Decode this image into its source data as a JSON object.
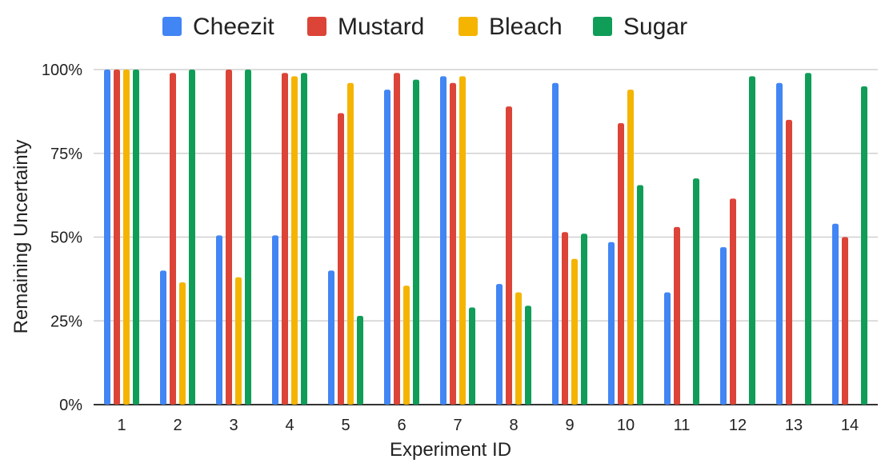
{
  "chart_data": {
    "type": "bar",
    "title": "",
    "xlabel": "Experiment ID",
    "ylabel": "Remaining Uncertainty",
    "ylim": [
      0,
      100
    ],
    "yticks": [
      "0%",
      "25%",
      "50%",
      "75%",
      "100%"
    ],
    "grid": true,
    "legend_position": "top-center",
    "categories": [
      "1",
      "2",
      "3",
      "4",
      "5",
      "6",
      "7",
      "8",
      "9",
      "10",
      "11",
      "12",
      "13",
      "14"
    ],
    "series": [
      {
        "name": "Cheezit",
        "color": "#4285F4",
        "values": [
          100,
          40,
          50.5,
          50.5,
          40,
          94,
          98,
          36,
          96,
          48.5,
          33.5,
          47,
          96,
          54
        ]
      },
      {
        "name": "Mustard",
        "color": "#DB4437",
        "values": [
          100,
          99,
          100,
          99,
          87,
          99,
          96,
          89,
          51.5,
          84,
          53,
          61.5,
          85,
          50
        ]
      },
      {
        "name": "Bleach",
        "color": "#F4B400",
        "values": [
          100,
          36.5,
          38,
          98,
          96,
          35.5,
          98,
          33.5,
          43.5,
          94,
          null,
          null,
          null,
          null
        ]
      },
      {
        "name": "Sugar",
        "color": "#0F9D58",
        "values": [
          100,
          100,
          100,
          99,
          26.5,
          97,
          29,
          29.5,
          51,
          65.5,
          67.5,
          98,
          99,
          95
        ]
      }
    ]
  }
}
